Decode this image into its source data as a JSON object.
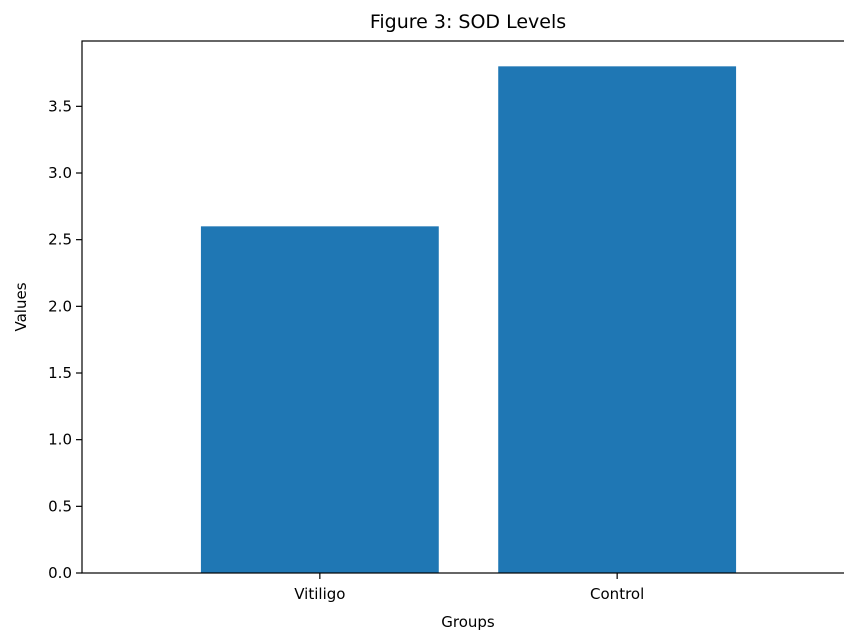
{
  "chart_data": {
    "type": "bar",
    "title": "Figure 3: SOD Levels",
    "xlabel": "Groups",
    "ylabel": "Values",
    "categories": [
      "Vitiligo",
      "Control"
    ],
    "values": [
      2.6,
      3.8
    ],
    "ylim": [
      0,
      3.99
    ],
    "yticks": [
      0.0,
      0.5,
      1.0,
      1.5,
      2.0,
      2.5,
      3.0,
      3.5
    ],
    "ytick_labels": [
      "0.0",
      "0.5",
      "1.0",
      "1.5",
      "2.0",
      "2.5",
      "3.0",
      "3.5"
    ],
    "grid": false,
    "legend": "none",
    "bar_color": "#1f77b4"
  }
}
